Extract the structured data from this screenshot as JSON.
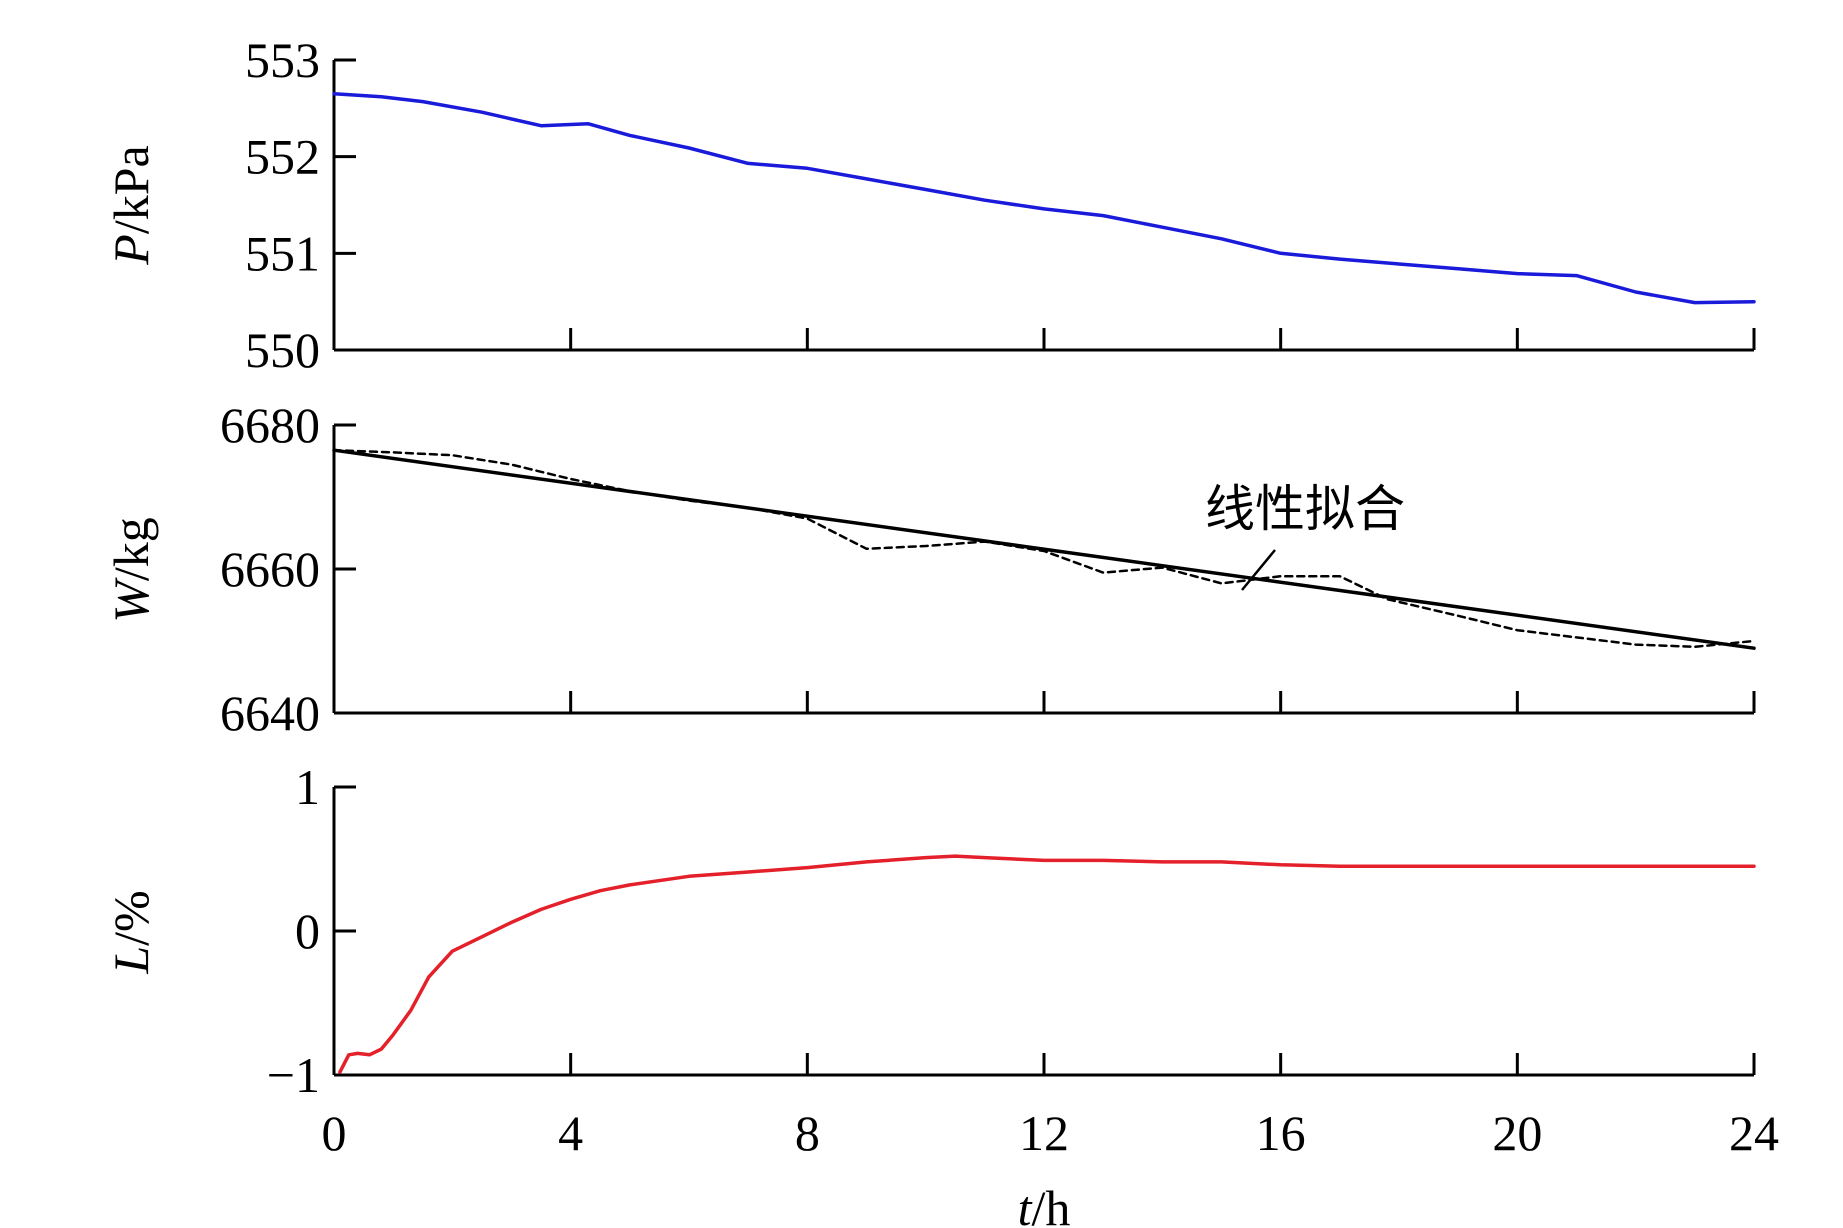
{
  "chart_data": [
    {
      "type": "line",
      "panel": "top",
      "ylabel": {
        "symbol": "P",
        "unit": "/kPa"
      },
      "ylim": [
        550,
        553
      ],
      "yticks": [
        "550",
        "551",
        "552",
        "553"
      ],
      "xlim": [
        0,
        24
      ],
      "series": [
        {
          "color": "#1a1adb",
          "style": "solid",
          "x": [
            0,
            0.8,
            1.5,
            2.5,
            3.5,
            4.3,
            5,
            6,
            7,
            8,
            9,
            10,
            11,
            12,
            13,
            14,
            15,
            16,
            17,
            18,
            19,
            20,
            21,
            22,
            23,
            24
          ],
          "values": [
            552.65,
            552.62,
            552.57,
            552.46,
            552.32,
            552.34,
            552.22,
            552.09,
            551.93,
            551.88,
            551.77,
            551.66,
            551.55,
            551.46,
            551.39,
            551.27,
            551.15,
            551.0,
            550.94,
            550.89,
            550.84,
            550.79,
            550.77,
            550.6,
            550.49,
            550.5
          ]
        }
      ]
    },
    {
      "type": "line",
      "panel": "middle",
      "ylabel": {
        "symbol": "W",
        "unit": "/kg"
      },
      "ylim": [
        6640,
        6680
      ],
      "yticks": [
        "6640",
        "6660",
        "6680"
      ],
      "xlim": [
        0,
        24
      ],
      "annotation": "线性拟合",
      "series": [
        {
          "role": "measured",
          "color": "#000000",
          "style": "dashed",
          "x": [
            0,
            1,
            2,
            3,
            4,
            5,
            6,
            7,
            8,
            9,
            10,
            11,
            12,
            13,
            14,
            15,
            16,
            17,
            17.8,
            19,
            20,
            21,
            22,
            23,
            24
          ],
          "values": [
            6676.5,
            6676.2,
            6675.8,
            6674.5,
            6672.5,
            6670.8,
            6669.5,
            6668.5,
            6667.0,
            6662.8,
            6663.2,
            6663.8,
            6662.5,
            6659.5,
            6660.2,
            6658.0,
            6659.0,
            6659.0,
            6655.8,
            6653.5,
            6651.5,
            6650.5,
            6649.5,
            6649.2,
            6650.0
          ]
        },
        {
          "role": "linear_fit",
          "color": "#000000",
          "style": "solid",
          "x": [
            0,
            24
          ],
          "values": [
            6676.5,
            6649.0
          ]
        }
      ]
    },
    {
      "type": "line",
      "panel": "bottom",
      "ylabel": {
        "symbol": "L",
        "unit": "/%"
      },
      "ylim": [
        -1,
        1
      ],
      "yticks": [
        "−1",
        "0",
        "1"
      ],
      "xlim": [
        0,
        24
      ],
      "xticks": [
        "0",
        "4",
        "8",
        "12",
        "16",
        "20",
        "24"
      ],
      "xlabel": {
        "symbol": "t",
        "unit": "/h"
      },
      "series": [
        {
          "color": "#e4202a",
          "style": "solid",
          "x": [
            0.1,
            0.25,
            0.4,
            0.6,
            0.8,
            1.0,
            1.3,
            1.6,
            2.0,
            2.5,
            3,
            3.5,
            4,
            4.5,
            5,
            6,
            7,
            8,
            9,
            10,
            10.5,
            11,
            12,
            13,
            14,
            15,
            16,
            17,
            18,
            20,
            22,
            24
          ],
          "values": [
            -0.98,
            -0.86,
            -0.85,
            -0.86,
            -0.82,
            -0.72,
            -0.55,
            -0.32,
            -0.14,
            -0.04,
            0.06,
            0.15,
            0.22,
            0.28,
            0.32,
            0.38,
            0.41,
            0.44,
            0.48,
            0.51,
            0.52,
            0.51,
            0.49,
            0.49,
            0.48,
            0.48,
            0.46,
            0.45,
            0.45,
            0.45,
            0.45,
            0.45
          ]
        }
      ]
    }
  ]
}
